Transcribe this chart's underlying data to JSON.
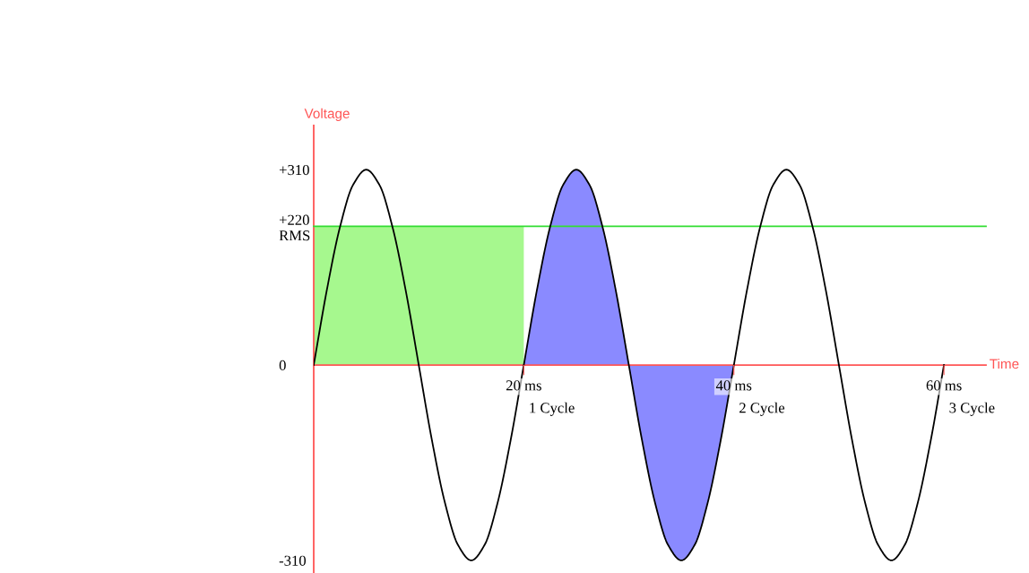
{
  "chart_data": {
    "type": "line",
    "xlabel": "Time",
    "ylabel": "Voltage",
    "xlim": [
      0,
      64
    ],
    "ylim": [
      -330,
      380
    ],
    "xticks": [
      {
        "value": 20,
        "label": "20 ms"
      },
      {
        "value": 40,
        "label": "40 ms"
      },
      {
        "value": 60,
        "label": "60 ms"
      }
    ],
    "annotations": [
      "1 Cycle",
      "2 Cycle",
      "3 Cycle"
    ],
    "yticks": [
      {
        "value": 310,
        "label": "+310"
      },
      {
        "value": 220,
        "label": "+220\nRMS"
      },
      0,
      {
        "value": -310,
        "label": "-310"
      }
    ],
    "ref_lines": [
      {
        "axis": "y",
        "value": 220,
        "color": "#33dd33"
      }
    ],
    "series": [
      {
        "type": "area",
        "color": "#a6f88e",
        "x": [
          0,
          20
        ],
        "values": [
          220,
          220
        ]
      },
      {
        "type": "area",
        "color": "#8a8aff",
        "x": [
          20,
          21.25,
          22.5,
          23.75,
          25,
          26.25,
          27.5,
          28.75,
          30,
          31.25,
          32.5,
          33.75,
          35,
          36.25,
          37.5,
          38.75,
          40
        ],
        "values": [
          0,
          119,
          219,
          286,
          310,
          286,
          219,
          119,
          0,
          -119,
          -219,
          -286,
          -310,
          -286,
          -219,
          -119,
          0
        ]
      },
      {
        "color": "#000000",
        "x": [
          0,
          1.25,
          2.5,
          3.75,
          5,
          6.25,
          7.5,
          8.75,
          10,
          11.25,
          12.5,
          13.75,
          15,
          16.25,
          17.5,
          18.75,
          20,
          21.25,
          22.5,
          23.75,
          25,
          26.25,
          27.5,
          28.75,
          30,
          31.25,
          32.5,
          33.75,
          35,
          36.25,
          37.5,
          38.75,
          40,
          41.25,
          42.5,
          43.75,
          45,
          46.25,
          47.5,
          48.75,
          50,
          51.25,
          52.5,
          53.75,
          55,
          56.25,
          57.5,
          58.75,
          60
        ],
        "values": [
          0,
          119,
          219,
          286,
          310,
          286,
          219,
          119,
          0,
          -119,
          -219,
          -286,
          -310,
          -286,
          -219,
          -119,
          0,
          119,
          219,
          286,
          310,
          286,
          219,
          119,
          0,
          -119,
          -219,
          -286,
          -310,
          -286,
          -219,
          -119,
          0,
          119,
          219,
          286,
          310,
          286,
          219,
          119,
          0,
          -119,
          -219,
          -286,
          -310,
          -286,
          -219,
          -119,
          0
        ]
      }
    ],
    "grid": false,
    "legend": false
  }
}
